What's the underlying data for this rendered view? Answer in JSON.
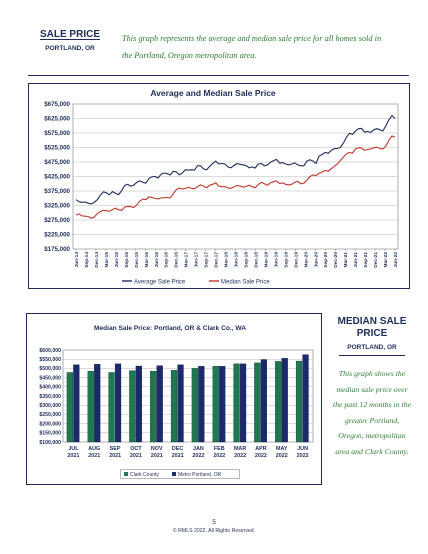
{
  "header": {
    "title": "SALE PRICE",
    "subtitle": "PORTLAND, OR",
    "description": "This graph represents the average and median sale price for all homes sold in the Portland, Oregon metropolitan area."
  },
  "side_panel": {
    "title": "MEDIAN SALE PRICE",
    "subtitle": "PORTLAND, OR",
    "description": "This graph shows the median sale price over the past 12 months in the greater Portland, Oregon, metropolitan area and Clark County."
  },
  "footer": {
    "page_number": "5",
    "copyright": "© RMLS 2022. All Rights Reserved."
  },
  "colors": {
    "navy": "#1f2d5a",
    "red": "#c0392b",
    "green": "#2e7d32",
    "bar_green": "#1e7a4e",
    "bar_navy": "#1a2a6c",
    "grid": "#b8b8b8"
  },
  "chart_data": [
    {
      "type": "line",
      "title": "Average and Median Sale Price",
      "ylim": [
        175000,
        675000
      ],
      "yticks": [
        "$175,000",
        "$225,000",
        "$275,000",
        "$325,000",
        "$375,000",
        "$425,000",
        "$475,000",
        "$525,000",
        "$575,000",
        "$625,000",
        "$675,000"
      ],
      "tick_labels": [
        "Jun-14",
        "Sep-14",
        "Dec-14",
        "Mar-15",
        "Jun-15",
        "Sep-15",
        "Dec-15",
        "Mar-16",
        "Jun-16",
        "Sep-16",
        "Dec-16",
        "Mar-17",
        "Jun-17",
        "Sep-17",
        "Dec-17",
        "Mar-18",
        "Jun-18",
        "Sep-18",
        "Dec-18",
        "Mar-19",
        "Jun-19",
        "Sep-19",
        "Dec-19",
        "Mar-20",
        "Jun-20",
        "Sep-20",
        "Dec-20",
        "Mar-21",
        "Jun-21",
        "Sep-21",
        "Dec-21",
        "Mar-22",
        "Jun-22"
      ],
      "grid": true,
      "legend_position": "bottom",
      "series": [
        {
          "name": "Average Sale Price",
          "color": "#1f2d5a",
          "values": [
            345000,
            338000,
            336000,
            337000,
            333000,
            330000,
            336000,
            345000,
            360000,
            372000,
            369000,
            362000,
            373000,
            367000,
            362000,
            376000,
            394000,
            398000,
            392000,
            395000,
            405000,
            410000,
            405000,
            402000,
            418000,
            424000,
            425000,
            420000,
            433000,
            437000,
            435000,
            430000,
            443000,
            441000,
            431000,
            437000,
            448000,
            447000,
            448000,
            447000,
            462000,
            462000,
            451000,
            448000,
            460000,
            470000,
            478000,
            468000,
            470000,
            468000,
            458000,
            455000,
            463000,
            470000,
            467000,
            465000,
            463000,
            455000,
            458000,
            454000,
            468000,
            470000,
            462000,
            465000,
            474000,
            479000,
            484000,
            471000,
            473000,
            468000,
            465000,
            468000,
            472000,
            465000,
            462000,
            462000,
            478000,
            483000,
            478000,
            470000,
            495000,
            501000,
            508000,
            505000,
            515000,
            521000,
            522000,
            525000,
            540000,
            560000,
            574000,
            570000,
            582000,
            590000,
            591000,
            578000,
            580000,
            577000,
            586000,
            590000,
            586000,
            582000,
            600000,
            620000,
            635000,
            625000
          ]
        },
        {
          "name": "Median Sale Price",
          "color": "#c0392b",
          "values": [
            292000,
            296000,
            289000,
            288000,
            287000,
            281000,
            285000,
            297000,
            304000,
            308000,
            307000,
            305000,
            311000,
            316000,
            310000,
            308000,
            319000,
            322000,
            321000,
            318000,
            327000,
            340000,
            347000,
            345000,
            355000,
            353000,
            349000,
            348000,
            351000,
            352000,
            353000,
            351000,
            365000,
            380000,
            385000,
            382000,
            384000,
            388000,
            384000,
            383000,
            390000,
            396000,
            392000,
            386000,
            395000,
            398000,
            403000,
            392000,
            390000,
            390000,
            386000,
            384000,
            389000,
            394000,
            392000,
            388000,
            391000,
            395000,
            390000,
            386000,
            397000,
            405000,
            400000,
            395000,
            403000,
            407000,
            410000,
            401000,
            403000,
            398000,
            396000,
            398000,
            405000,
            408000,
            400000,
            402000,
            412000,
            425000,
            430000,
            428000,
            436000,
            440000,
            446000,
            443000,
            452000,
            460000,
            468000,
            480000,
            492000,
            503000,
            508000,
            505000,
            520000,
            524000,
            523000,
            515000,
            518000,
            520000,
            524000,
            526000,
            522000,
            520000,
            530000,
            550000,
            565000,
            560000
          ]
        }
      ]
    },
    {
      "type": "bar",
      "title": "Median Sale Price: Portland, OR & Clark Co., WA",
      "categories": [
        "JUL 2021",
        "AUG 2021",
        "SEP 2021",
        "OCT 2021",
        "NOV 2021",
        "DEC 2021",
        "JAN 2022",
        "FEB 2022",
        "MAR 2022",
        "APR 2022",
        "MAY 2022",
        "JUN 2022"
      ],
      "ylim": [
        100000,
        600000
      ],
      "yticks": [
        "$100,000",
        "$150,000",
        "$200,000",
        "$250,000",
        "$300,000",
        "$350,000",
        "$400,000",
        "$450,000",
        "$500,000",
        "$550,000",
        "$600,000"
      ],
      "grid": true,
      "legend_position": "bottom",
      "series": [
        {
          "name": "Clark County",
          "color": "#1e7a4e",
          "values": [
            478000,
            485000,
            478000,
            488000,
            485000,
            490000,
            500000,
            512000,
            525000,
            530000,
            538000,
            540000
          ]
        },
        {
          "name": "Metro Portland, OR",
          "color": "#1a2a6c",
          "values": [
            520000,
            523000,
            525000,
            513000,
            515000,
            520000,
            512000,
            512000,
            525000,
            548000,
            555000,
            575000
          ]
        }
      ]
    }
  ]
}
